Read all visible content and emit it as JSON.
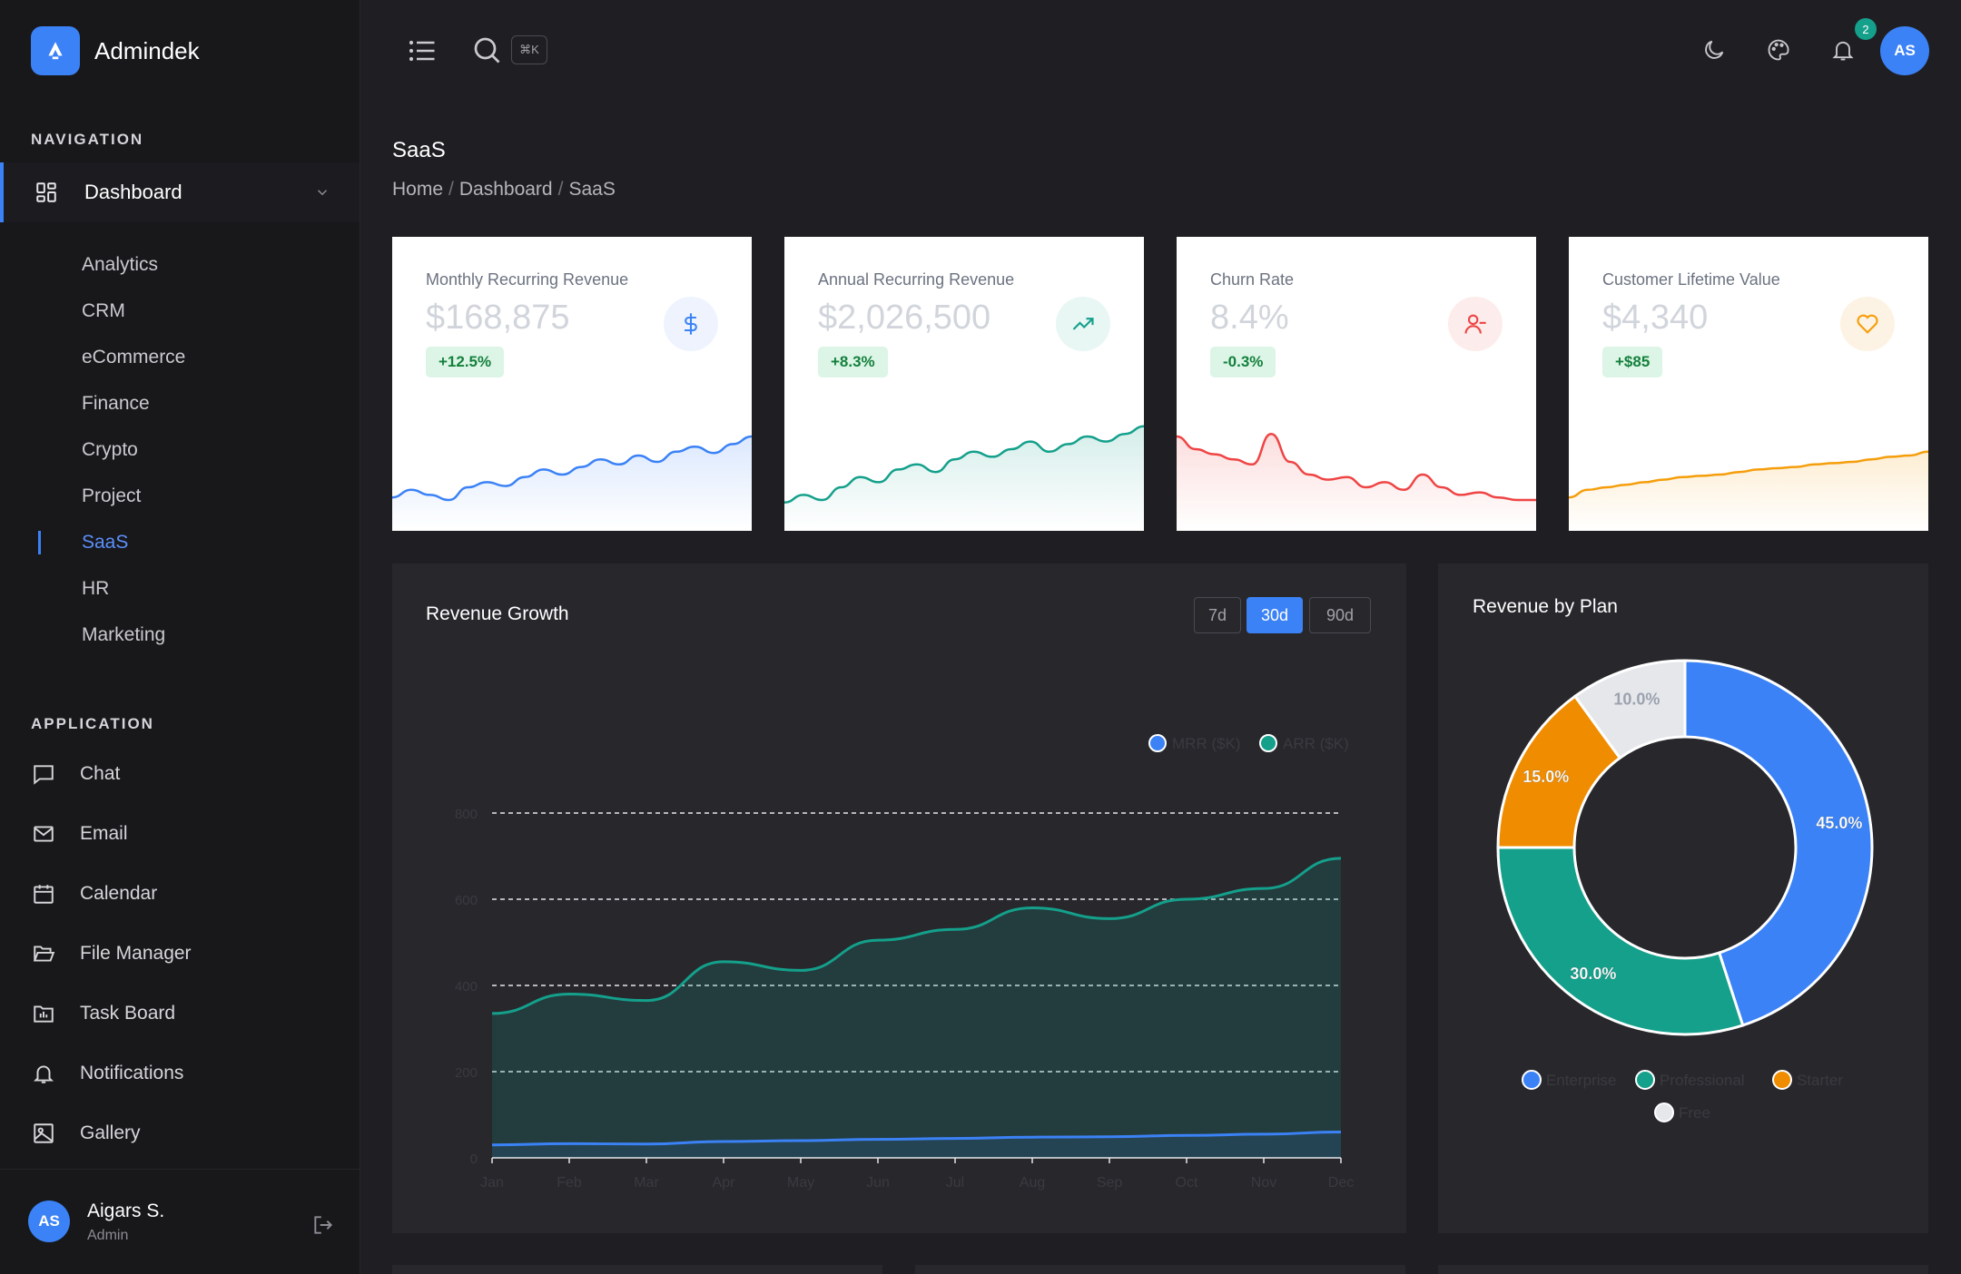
{
  "brand": {
    "name": "Admindek"
  },
  "sidebar": {
    "navigation_title": "NAVIGATION",
    "dashboard_label": "Dashboard",
    "dashboard_items": [
      {
        "label": "Analytics"
      },
      {
        "label": "CRM"
      },
      {
        "label": "eCommerce"
      },
      {
        "label": "Finance"
      },
      {
        "label": "Crypto"
      },
      {
        "label": "Project"
      },
      {
        "label": "SaaS",
        "active": true
      },
      {
        "label": "HR"
      },
      {
        "label": "Marketing"
      }
    ],
    "application_title": "APPLICATION",
    "application_items": [
      {
        "label": "Chat",
        "icon": "chat-icon"
      },
      {
        "label": "Email",
        "icon": "mail-icon"
      },
      {
        "label": "Calendar",
        "icon": "calendar-icon"
      },
      {
        "label": "File Manager",
        "icon": "folder-open-icon"
      },
      {
        "label": "Task Board",
        "icon": "task-board-icon"
      },
      {
        "label": "Notifications",
        "icon": "bell-icon"
      },
      {
        "label": "Gallery",
        "icon": "image-icon"
      }
    ],
    "user": {
      "initials": "AS",
      "name": "Aigars S.",
      "role": "Admin"
    }
  },
  "topbar": {
    "search_shortcut": "⌘K",
    "notification_count": "2",
    "avatar_initials": "AS"
  },
  "page": {
    "title": "SaaS",
    "breadcrumb": [
      "Home",
      "Dashboard",
      "SaaS"
    ]
  },
  "kpis": [
    {
      "title": "Monthly Recurring Revenue",
      "value": "$168,875",
      "change": "+12.5%",
      "icon": "dollar-icon",
      "color": "#3b82f6",
      "trend": [
        22,
        28,
        24,
        20,
        30,
        34,
        31,
        38,
        44,
        40,
        46,
        52,
        48,
        55,
        50,
        58,
        62,
        57,
        64,
        70
      ]
    },
    {
      "title": "Annual Recurring Revenue",
      "value": "$2,026,500",
      "change": "+8.3%",
      "icon": "trending-up-icon",
      "color": "#14a08b",
      "trend": [
        18,
        24,
        20,
        30,
        38,
        34,
        44,
        48,
        42,
        52,
        58,
        54,
        60,
        66,
        58,
        64,
        70,
        66,
        72,
        78
      ]
    },
    {
      "title": "Churn Rate",
      "value": "8.4%",
      "change": "-0.3%",
      "icon": "user-minus-icon",
      "color": "#ef4444",
      "trend": [
        70,
        60,
        56,
        52,
        48,
        72,
        50,
        40,
        36,
        38,
        30,
        34,
        28,
        40,
        30,
        24,
        26,
        22,
        20,
        20
      ]
    },
    {
      "title": "Customer Lifetime Value",
      "value": "$4,340",
      "change": "+$85",
      "icon": "heart-icon",
      "color": "#f59e0b",
      "trend": [
        22,
        28,
        30,
        32,
        34,
        36,
        38,
        39,
        40,
        42,
        44,
        45,
        46,
        48,
        49,
        50,
        52,
        54,
        55,
        58
      ]
    }
  ],
  "revenue_growth": {
    "title": "Revenue Growth",
    "ranges": [
      "7d",
      "30d",
      "90d"
    ],
    "active_range": "30d"
  },
  "revenue_by_plan": {
    "title": "Revenue by Plan"
  },
  "chart_data": [
    {
      "type": "area",
      "title": "Revenue Growth",
      "categories": [
        "Jan",
        "Feb",
        "Mar",
        "Apr",
        "May",
        "Jun",
        "Jul",
        "Aug",
        "Sep",
        "Oct",
        "Nov",
        "Dec"
      ],
      "series": [
        {
          "name": "MRR ($K)",
          "color": "#3b82f6",
          "values": [
            30,
            33,
            32,
            38,
            40,
            43,
            45,
            48,
            49,
            52,
            55,
            60
          ]
        },
        {
          "name": "ARR ($K)",
          "color": "#14a08b",
          "values": [
            335,
            380,
            365,
            455,
            435,
            505,
            530,
            580,
            555,
            600,
            625,
            695
          ]
        }
      ],
      "y_ticks": [
        0,
        200,
        400,
        600,
        800
      ],
      "ylim": [
        0,
        800
      ],
      "grid": true,
      "legend": "top-right"
    },
    {
      "type": "pie",
      "title": "Revenue by Plan",
      "donut": true,
      "labels": [
        "Enterprise",
        "Professional",
        "Starter",
        "Free"
      ],
      "values": [
        45.0,
        30.0,
        15.0,
        10.0
      ],
      "value_labels": [
        "45.0%",
        "30.0%",
        "15.0%",
        "10.0%"
      ],
      "colors": [
        "#3b82f6",
        "#14a08b",
        "#f08c00",
        "#e5e7eb"
      ],
      "legend": "bottom"
    }
  ]
}
